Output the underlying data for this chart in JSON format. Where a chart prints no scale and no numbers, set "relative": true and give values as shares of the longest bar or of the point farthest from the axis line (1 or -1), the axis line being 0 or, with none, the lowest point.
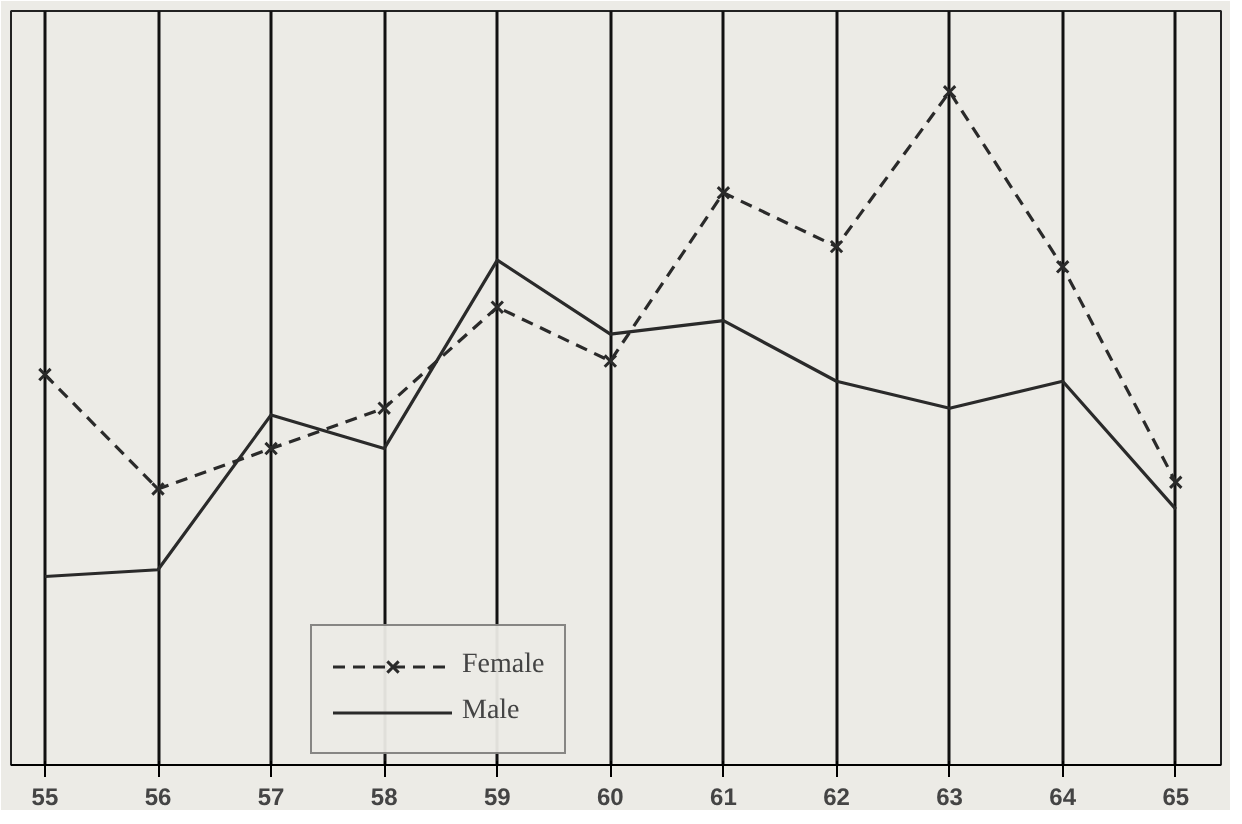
{
  "chart_data": {
    "type": "line",
    "relative": true,
    "categories": [
      "55",
      "56",
      "57",
      "58",
      "59",
      "60",
      "61",
      "62",
      "63",
      "64",
      "65"
    ],
    "series": [
      {
        "name": "Female",
        "color": "#2a2a2a",
        "line_style": "dashed",
        "marker": "cross",
        "values": [
          0.58,
          0.41,
          0.47,
          0.53,
          0.68,
          0.6,
          0.85,
          0.77,
          1,
          0.74,
          0.42
        ]
      },
      {
        "name": "Male",
        "color": "#2a2a2a",
        "line_style": "solid",
        "marker": "none",
        "values": [
          0.28,
          0.29,
          0.52,
          0.47,
          0.75,
          0.64,
          0.66,
          0.57,
          0.53,
          0.57,
          0.38
        ]
      }
    ],
    "grid": "x",
    "legend": "bottom left"
  }
}
